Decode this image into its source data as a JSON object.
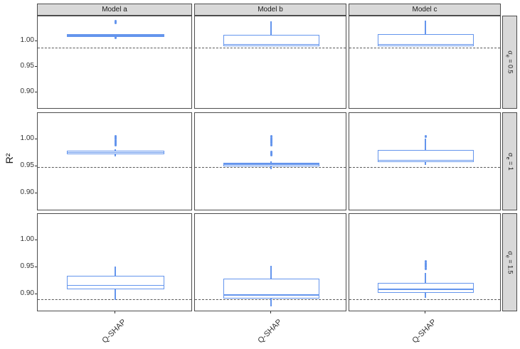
{
  "figure": {
    "y_axis_label": "R²",
    "x_tick_label": "Q-SHAP",
    "column_strip_labels": [
      "Model a",
      "Model b",
      "Model c"
    ],
    "row_strip_labels": [
      "σₑ = 0.5",
      "σₑ = 1",
      "σₑ = 1.5"
    ]
  },
  "colors": {
    "box_stroke": "#6495ED",
    "ref_line": "#5a5a5a",
    "panel_border": "#4d4d4d",
    "strip_fill": "#d9d9d9",
    "text": "#333333"
  },
  "chart_data": {
    "type": "boxplot",
    "title": "",
    "xlabel": "",
    "ylabel": "R²",
    "x_categories": [
      "Q-SHAP"
    ],
    "facet_columns": [
      "Model a",
      "Model b",
      "Model c"
    ],
    "facet_rows": [
      {
        "text": "σ_e = 0.5",
        "base": "σ",
        "sub": "e",
        "rest": " = 0.5"
      },
      {
        "text": "σ_e = 1",
        "base": "σ",
        "sub": "e",
        "rest": " = 1"
      },
      {
        "text": "σ_e = 1.5",
        "base": "σ",
        "sub": "e",
        "rest": " = 1.5"
      }
    ],
    "ylim": [
      0.867,
      1.049
    ],
    "yticks": [
      {
        "value": 1.0,
        "label": "1.00"
      },
      {
        "value": 0.95,
        "label": "0.95"
      },
      {
        "value": 0.9,
        "label": "0.90"
      }
    ],
    "grid": "off",
    "legend": "none",
    "ref_line_style": "dashed",
    "ref_lines_by_row": [
      0.987,
      0.948,
      0.889
    ],
    "panels": [
      {
        "row": 0,
        "col": 0,
        "whisker_low": 1.01,
        "q1": 1.01,
        "median": 1.0112,
        "q3": 1.0125,
        "whisker_high": 1.0125,
        "outliers": [
          1.036,
          1.039,
          1.008
        ]
      },
      {
        "row": 0,
        "col": 1,
        "whisker_low": 0.99,
        "q1": 0.992,
        "median": 0.9935,
        "q3": 1.012,
        "whisker_high": 1.039,
        "outliers": []
      },
      {
        "row": 0,
        "col": 2,
        "whisker_low": 0.99,
        "q1": 0.992,
        "median": 0.9935,
        "q3": 1.013,
        "whisker_high": 1.041,
        "outliers": []
      },
      {
        "row": 1,
        "col": 0,
        "whisker_low": 0.968,
        "q1": 0.9735,
        "median": 0.9755,
        "q3": 0.9775,
        "whisker_high": 0.982,
        "outliers": [
          0.989,
          0.992,
          0.995,
          0.998,
          1.001,
          1.004,
          1.006
        ]
      },
      {
        "row": 1,
        "col": 1,
        "whisker_low": 0.945,
        "q1": 0.952,
        "median": 0.954,
        "q3": 0.956,
        "whisker_high": 0.959,
        "outliers": [
          0.971,
          0.974,
          0.977,
          0.99,
          0.993,
          0.996,
          0.999,
          1.002,
          1.005
        ]
      },
      {
        "row": 1,
        "col": 2,
        "whisker_low": 0.953,
        "q1": 0.959,
        "median": 0.961,
        "q3": 0.979,
        "whisker_high": 1.002,
        "outliers": [
          1.006
        ]
      },
      {
        "row": 2,
        "col": 0,
        "whisker_low": 0.889,
        "q1": 0.911,
        "median": 0.916,
        "q3": 0.933,
        "whisker_high": 0.951,
        "outliers": []
      },
      {
        "row": 2,
        "col": 1,
        "whisker_low": 0.877,
        "q1": 0.893,
        "median": 0.898,
        "q3": 0.928,
        "whisker_high": 0.953,
        "outliers": []
      },
      {
        "row": 2,
        "col": 2,
        "whisker_low": 0.893,
        "q1": 0.904,
        "median": 0.909,
        "q3": 0.92,
        "whisker_high": 0.94,
        "outliers": [
          0.948,
          0.951,
          0.954,
          0.957,
          0.96
        ]
      }
    ]
  }
}
